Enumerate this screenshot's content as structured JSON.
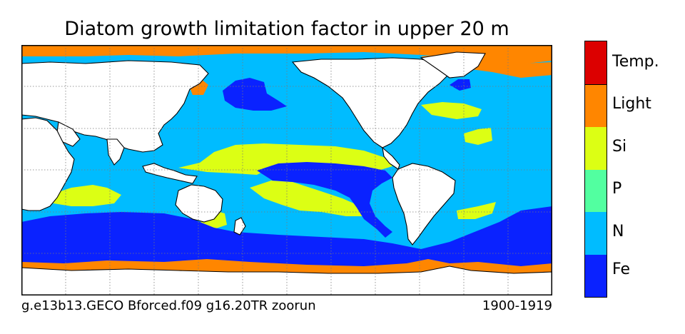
{
  "title": "Diatom growth limitation factor in upper 20 m",
  "run_label": "g.e13b13.GECO Bforced.f09 g16.20TR zoorun",
  "period": "1900-1919",
  "legend": {
    "categories": [
      {
        "label": "Fe",
        "color": "#0a22ff"
      },
      {
        "label": "N",
        "color": "#00bcff"
      },
      {
        "label": "P",
        "color": "#52ffa0"
      },
      {
        "label": "Si",
        "color": "#dcff14"
      },
      {
        "label": "Light",
        "color": "#ff8600"
      },
      {
        "label": "Temp.",
        "color": "#dc0000"
      }
    ]
  },
  "colors": {
    "land": "#ffffff",
    "coastline": "#000000",
    "gridline": "#7a7a7a"
  }
}
